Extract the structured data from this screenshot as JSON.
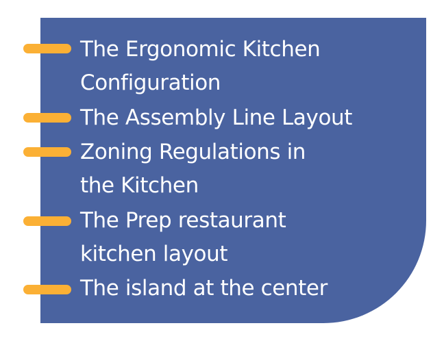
{
  "colors": {
    "card": "#4a63a0",
    "bullet": "#fbb035",
    "text": "#ffffff"
  },
  "items": [
    {
      "line1": "The Ergonomic Kitchen",
      "line2": "Configuration"
    },
    {
      "line1": "The Assembly Line Layout",
      "line2": ""
    },
    {
      "line1": "Zoning Regulations in",
      "line2": "the Kitchen"
    },
    {
      "line1": "The Prep restaurant",
      "line2": "kitchen layout"
    },
    {
      "line1": "The island at the center",
      "line2": ""
    }
  ]
}
